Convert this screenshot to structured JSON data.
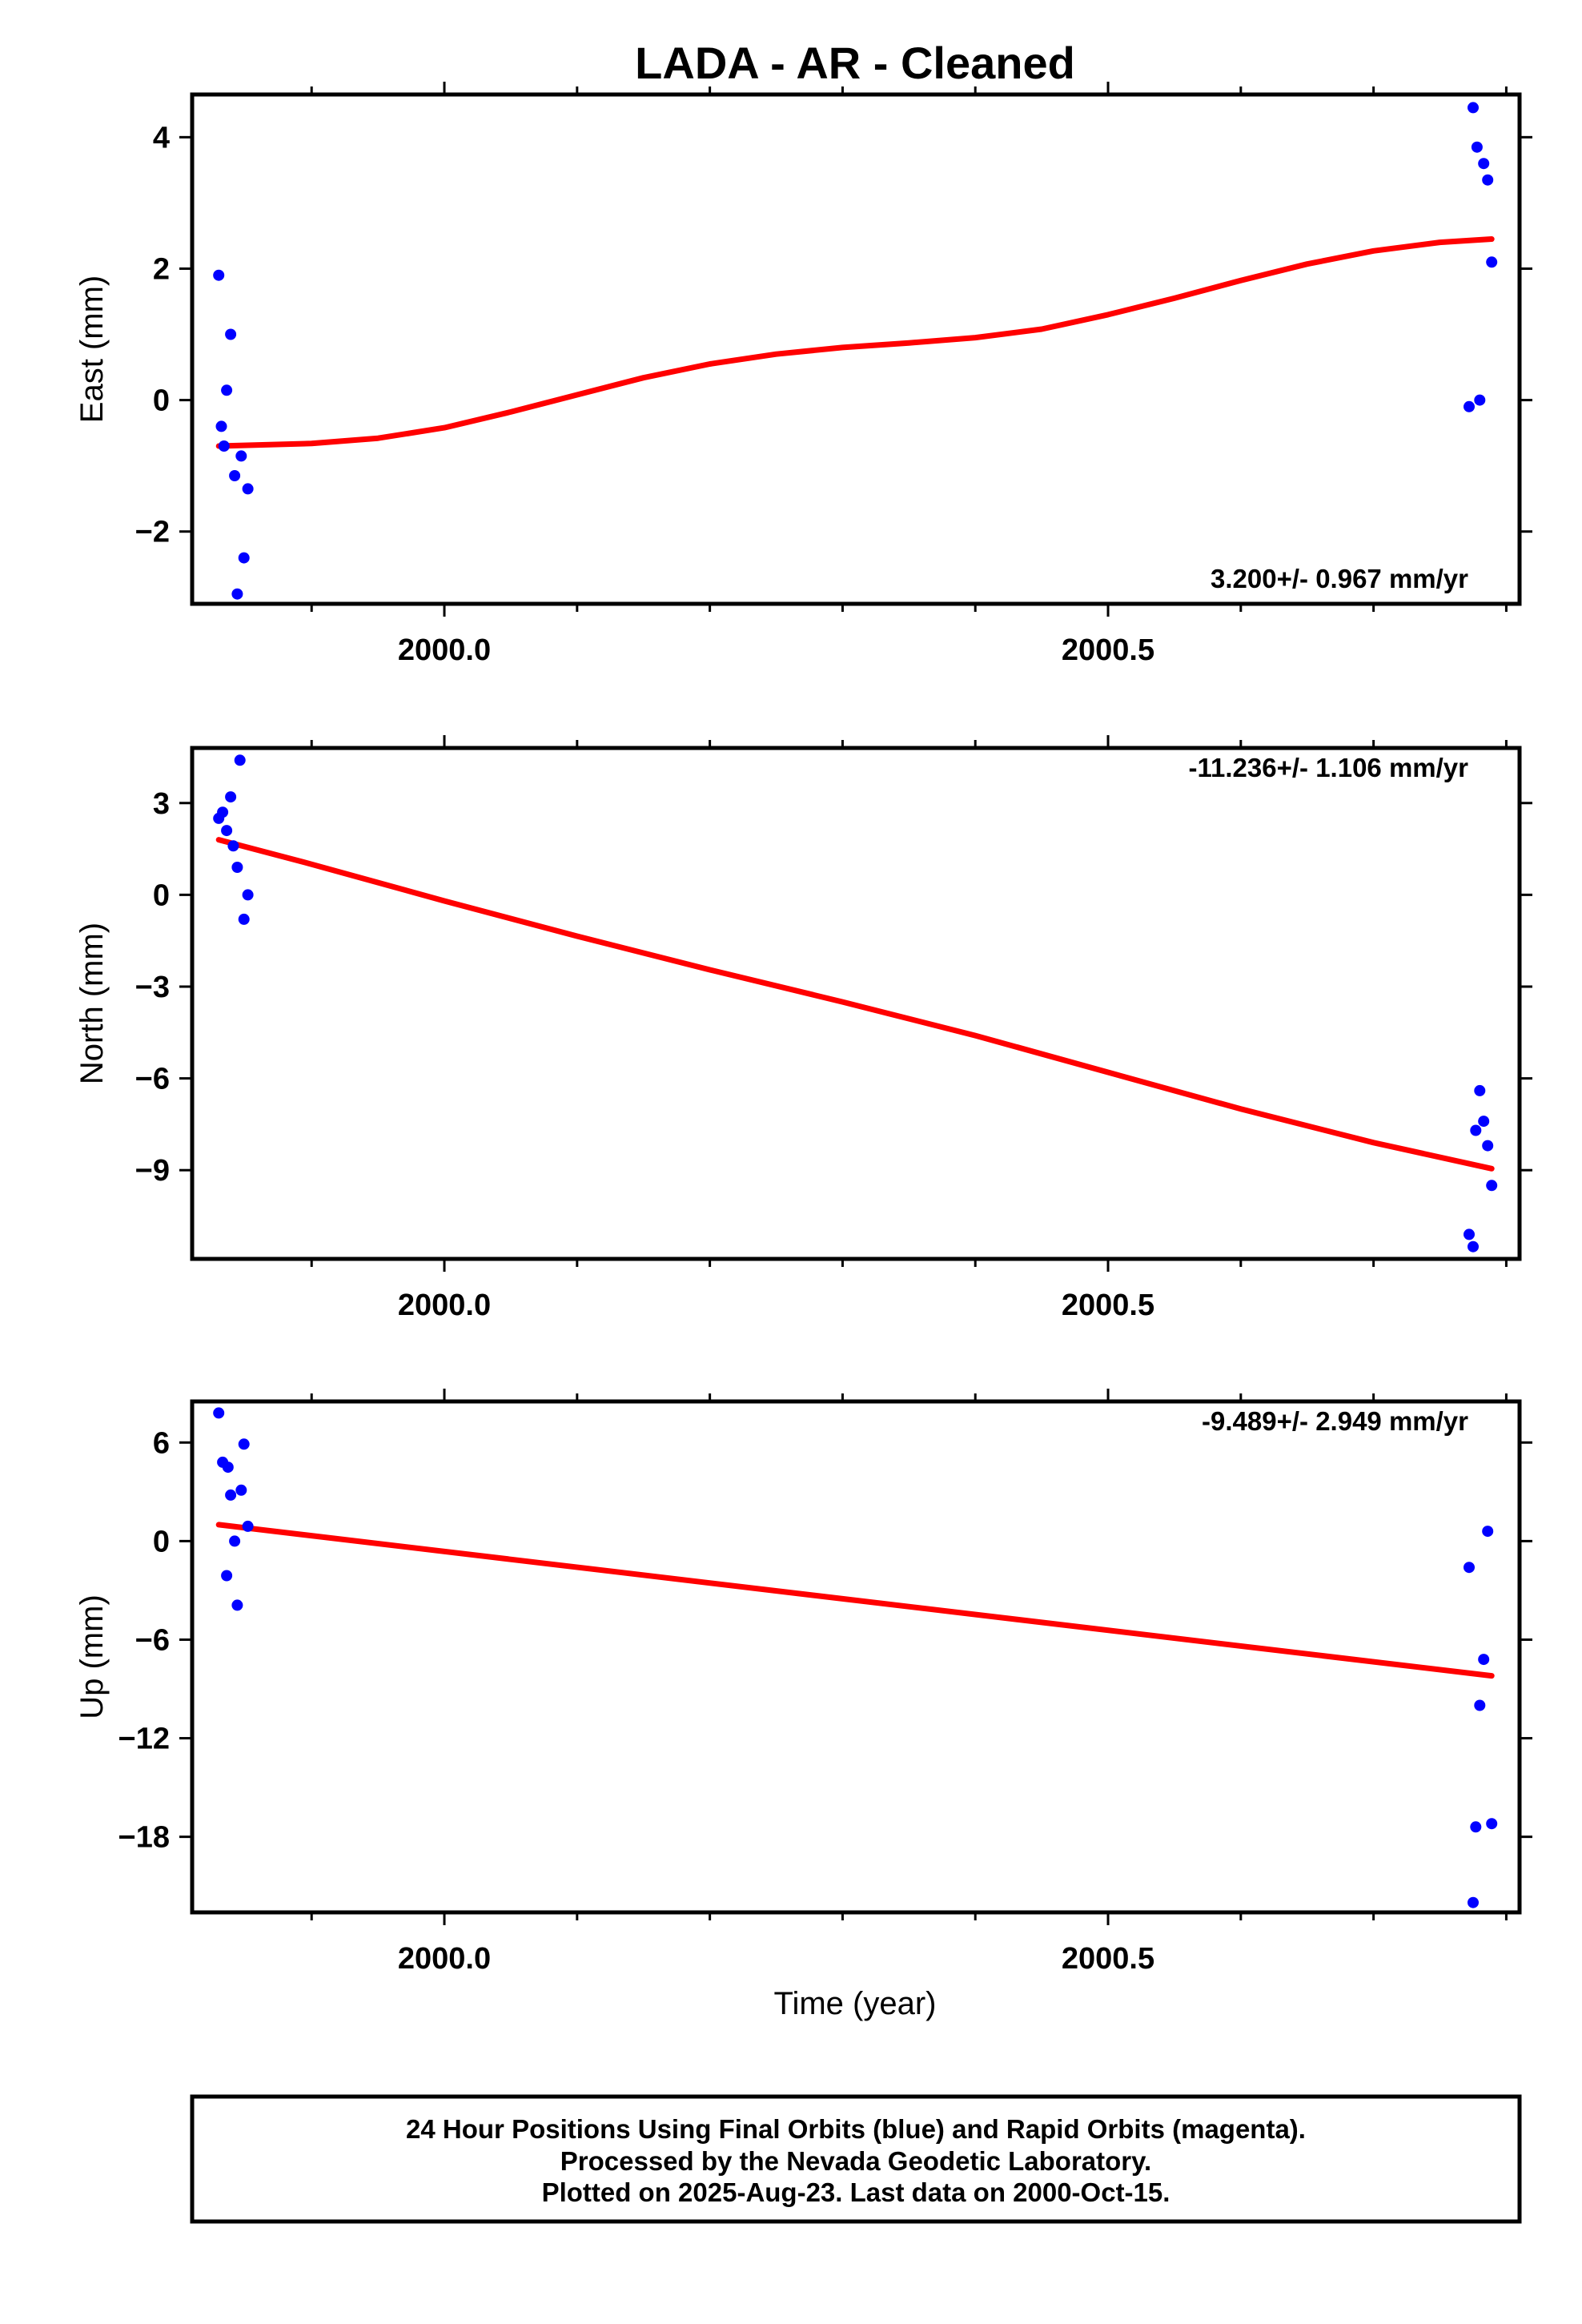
{
  "title": "LADA  - AR - Cleaned",
  "colors": {
    "points": "#0000ff",
    "fit": "#ff0000",
    "frame": "#000000"
  },
  "chart_data": [
    {
      "type": "scatter",
      "ylabel": "East (mm)",
      "rate": "3.200+/- 0.967 mm/yr",
      "xlim": [
        1999.81,
        2000.81
      ],
      "ylim": [
        -3.1,
        4.65
      ],
      "xticks": [
        {
          "value": 2000.0,
          "label": "2000.0"
        },
        {
          "value": 2000.5,
          "label": "2000.5"
        }
      ],
      "yticks": [
        {
          "value": 4,
          "label": "4"
        },
        {
          "value": 2,
          "label": "2"
        },
        {
          "value": 0,
          "label": "0"
        },
        {
          "value": -2,
          "label": "−2"
        }
      ],
      "points": [
        {
          "x": 1999.83,
          "y": 1.9
        },
        {
          "x": 1999.832,
          "y": -0.4
        },
        {
          "x": 1999.834,
          "y": -0.7
        },
        {
          "x": 1999.836,
          "y": 0.15
        },
        {
          "x": 1999.839,
          "y": 1.0
        },
        {
          "x": 1999.842,
          "y": -1.15
        },
        {
          "x": 1999.844,
          "y": -2.95
        },
        {
          "x": 1999.847,
          "y": -0.85
        },
        {
          "x": 1999.849,
          "y": -2.4
        },
        {
          "x": 1999.852,
          "y": -1.35
        },
        {
          "x": 2000.772,
          "y": -0.1
        },
        {
          "x": 2000.775,
          "y": 4.45
        },
        {
          "x": 2000.778,
          "y": 3.85
        },
        {
          "x": 2000.78,
          "y": 0.0
        },
        {
          "x": 2000.783,
          "y": 3.6
        },
        {
          "x": 2000.786,
          "y": 3.35
        },
        {
          "x": 2000.789,
          "y": 2.1
        }
      ],
      "fit": {
        "x": [
          1999.83,
          1999.9,
          1999.95,
          2000.0,
          2000.05,
          2000.1,
          2000.15,
          2000.2,
          2000.25,
          2000.3,
          2000.35,
          2000.4,
          2000.45,
          2000.5,
          2000.55,
          2000.6,
          2000.65,
          2000.7,
          2000.75,
          2000.789
        ],
        "y": [
          -0.7,
          -0.66,
          -0.58,
          -0.42,
          -0.18,
          0.08,
          0.34,
          0.55,
          0.7,
          0.8,
          0.87,
          0.95,
          1.08,
          1.3,
          1.55,
          1.82,
          2.07,
          2.27,
          2.4,
          2.45
        ]
      }
    },
    {
      "type": "scatter",
      "ylabel": "North (mm)",
      "rate": "-11.236+/- 1.106 mm/yr",
      "xlim": [
        1999.81,
        2000.81
      ],
      "ylim": [
        -11.9,
        4.8
      ],
      "xticks": [
        {
          "value": 2000.0,
          "label": "2000.0"
        },
        {
          "value": 2000.5,
          "label": "2000.5"
        }
      ],
      "yticks": [
        {
          "value": 3,
          "label": "3"
        },
        {
          "value": 0,
          "label": "0"
        },
        {
          "value": -3,
          "label": "−3"
        },
        {
          "value": -6,
          "label": "−6"
        },
        {
          "value": -9,
          "label": "−9"
        }
      ],
      "points": [
        {
          "x": 1999.83,
          "y": 2.5
        },
        {
          "x": 1999.833,
          "y": 2.7
        },
        {
          "x": 1999.836,
          "y": 2.1
        },
        {
          "x": 1999.839,
          "y": 3.2
        },
        {
          "x": 1999.841,
          "y": 1.6
        },
        {
          "x": 1999.844,
          "y": 0.9
        },
        {
          "x": 1999.846,
          "y": 4.4
        },
        {
          "x": 1999.849,
          "y": -0.8
        },
        {
          "x": 1999.852,
          "y": 0.0
        },
        {
          "x": 2000.772,
          "y": -11.1
        },
        {
          "x": 2000.775,
          "y": -11.5
        },
        {
          "x": 2000.777,
          "y": -7.7
        },
        {
          "x": 2000.78,
          "y": -6.4
        },
        {
          "x": 2000.783,
          "y": -7.4
        },
        {
          "x": 2000.786,
          "y": -8.2
        },
        {
          "x": 2000.789,
          "y": -9.5
        }
      ],
      "fit": {
        "x": [
          1999.83,
          1999.9,
          2000.0,
          2000.1,
          2000.2,
          2000.3,
          2000.4,
          2000.5,
          2000.6,
          2000.7,
          2000.789
        ],
        "y": [
          1.8,
          1.0,
          -0.2,
          -1.35,
          -2.45,
          -3.5,
          -4.6,
          -5.8,
          -7.0,
          -8.1,
          -8.95
        ]
      }
    },
    {
      "type": "scatter",
      "ylabel": "Up (mm)",
      "rate": "-9.489+/- 2.949 mm/yr",
      "xlim": [
        1999.81,
        2000.81
      ],
      "ylim": [
        -22.6,
        8.5
      ],
      "xticks": [
        {
          "value": 2000.0,
          "label": "2000.0"
        },
        {
          "value": 2000.5,
          "label": "2000.5"
        }
      ],
      "yticks": [
        {
          "value": 6,
          "label": "6"
        },
        {
          "value": 0,
          "label": "0"
        },
        {
          "value": -6,
          "label": "−6"
        },
        {
          "value": -12,
          "label": "−12"
        },
        {
          "value": -18,
          "label": "−18"
        }
      ],
      "points": [
        {
          "x": 1999.83,
          "y": 7.8
        },
        {
          "x": 1999.833,
          "y": 4.8
        },
        {
          "x": 1999.836,
          "y": -2.1
        },
        {
          "x": 1999.837,
          "y": 4.5
        },
        {
          "x": 1999.839,
          "y": 2.8
        },
        {
          "x": 1999.842,
          "y": 0.0
        },
        {
          "x": 1999.844,
          "y": -3.9
        },
        {
          "x": 1999.847,
          "y": 3.1
        },
        {
          "x": 1999.849,
          "y": 5.9
        },
        {
          "x": 1999.852,
          "y": 0.9
        },
        {
          "x": 2000.772,
          "y": -1.6
        },
        {
          "x": 2000.775,
          "y": -22.0
        },
        {
          "x": 2000.777,
          "y": -17.4
        },
        {
          "x": 2000.78,
          "y": -10.0
        },
        {
          "x": 2000.783,
          "y": -7.2
        },
        {
          "x": 2000.786,
          "y": 0.6
        },
        {
          "x": 2000.789,
          "y": -17.2
        }
      ],
      "fit": {
        "x": [
          1999.83,
          2000.789
        ],
        "y": [
          1.0,
          -8.2
        ]
      }
    }
  ],
  "xlabel": "Time (year)",
  "caption": {
    "line1": "24 Hour Positions Using Final Orbits (blue) and Rapid Orbits (magenta).",
    "line2": "Processed by the Nevada Geodetic Laboratory.",
    "line3": "Plotted on 2025-Aug-23. Last data on 2000-Oct-15."
  }
}
